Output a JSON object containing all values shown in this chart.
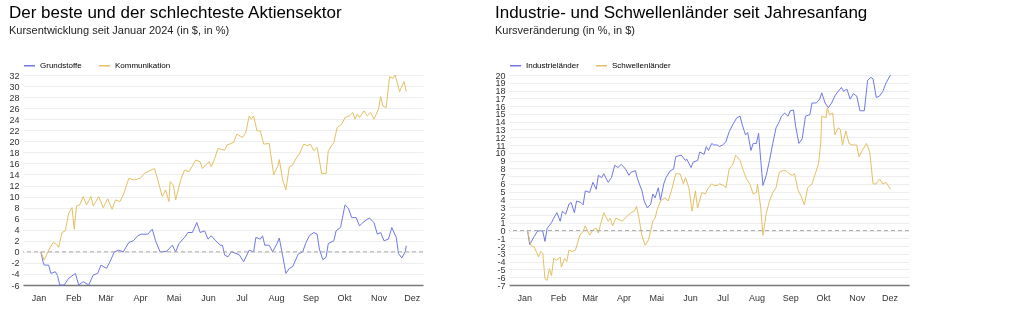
{
  "chart_data": [
    {
      "type": "line",
      "title": "Der beste und der schlechteste Aktiensektor",
      "subtitle": "Kursentwicklung seit Januar 2024 (in $, in %)",
      "legend": "top left",
      "grid": "y",
      "line_style": "solid",
      "xlim": [
        "2023-12-18",
        "2024-12-11"
      ],
      "xticks": [
        {
          "value": "2024-01-01",
          "label": "Jan"
        },
        {
          "value": "2024-02-01",
          "label": "Feb"
        },
        {
          "value": "2024-03-01",
          "label": "Mär"
        },
        {
          "value": "2024-04-01",
          "label": "Apr"
        },
        {
          "value": "2024-05-01",
          "label": "Mai"
        },
        {
          "value": "2024-06-01",
          "label": "Jun"
        },
        {
          "value": "2024-07-01",
          "label": "Jul"
        },
        {
          "value": "2024-08-01",
          "label": "Aug"
        },
        {
          "value": "2024-09-01",
          "label": "Sep"
        },
        {
          "value": "2024-10-01",
          "label": "Okt"
        },
        {
          "value": "2024-11-01",
          "label": "Nov"
        },
        {
          "value": "2024-12-01",
          "label": "Dez"
        }
      ],
      "ylim": [
        -6,
        32
      ],
      "yticks": [
        -6,
        -4,
        -2,
        0,
        2,
        4,
        6,
        8,
        10,
        12,
        14,
        16,
        18,
        20,
        22,
        24,
        26,
        28,
        30,
        32
      ],
      "ref_lines": [
        {
          "axis": "y",
          "value": 0,
          "color": "#aaaaaa",
          "line_style": "dashed"
        }
      ],
      "series": [
        {
          "name": "Grundstoffe",
          "color": "#7079e6",
          "x": [
            "2024-01-03",
            "2024-01-05",
            "2024-01-06",
            "2024-01-10",
            "2024-01-12",
            "2024-01-16",
            "2024-01-18",
            "2024-01-20",
            "2024-01-24",
            "2024-01-28",
            "2024-02-03",
            "2024-02-06",
            "2024-02-10",
            "2024-02-15",
            "2024-02-19",
            "2024-02-23",
            "2024-02-26",
            "2024-03-02",
            "2024-03-05",
            "2024-03-09",
            "2024-03-13",
            "2024-03-17",
            "2024-03-22",
            "2024-03-26",
            "2024-03-30",
            "2024-04-02",
            "2024-04-08",
            "2024-04-12",
            "2024-04-15",
            "2024-04-19",
            "2024-04-25",
            "2024-04-30",
            "2024-05-03",
            "2024-05-06",
            "2024-05-11",
            "2024-05-14",
            "2024-05-18",
            "2024-05-22",
            "2024-05-25",
            "2024-05-29",
            "2024-06-01",
            "2024-06-04",
            "2024-06-08",
            "2024-06-12",
            "2024-06-14",
            "2024-06-16",
            "2024-06-19",
            "2024-06-22",
            "2024-06-29",
            "2024-07-03",
            "2024-07-08",
            "2024-07-12",
            "2024-07-14",
            "2024-07-18",
            "2024-07-20",
            "2024-07-22",
            "2024-07-26",
            "2024-07-29",
            "2024-08-02",
            "2024-08-04",
            "2024-08-07",
            "2024-08-10",
            "2024-08-13",
            "2024-08-16",
            "2024-08-21",
            "2024-08-25",
            "2024-08-28",
            "2024-08-31",
            "2024-09-04",
            "2024-09-07",
            "2024-09-09",
            "2024-09-12",
            "2024-09-15",
            "2024-09-17",
            "2024-09-22",
            "2024-09-24",
            "2024-09-28",
            "2024-10-02",
            "2024-10-05",
            "2024-10-08",
            "2024-10-12",
            "2024-10-15",
            "2024-10-18",
            "2024-10-22",
            "2024-10-24",
            "2024-10-28",
            "2024-10-31",
            "2024-11-03",
            "2024-11-06",
            "2024-11-10",
            "2024-11-13",
            "2024-11-17",
            "2024-11-19",
            "2024-11-22",
            "2024-11-25",
            "2024-11-26"
          ],
          "values": [
            0,
            -1.8,
            -2.4,
            -2.4,
            -3.9,
            -3.6,
            -4.3,
            -6,
            -6,
            -4.8,
            -3.9,
            -6,
            -5.4,
            -6,
            -4.2,
            -3.9,
            -2.4,
            -3,
            -1.8,
            0,
            0.3,
            0,
            1.7,
            2,
            2.9,
            3.2,
            3.2,
            4.1,
            2,
            0,
            0.1,
            1.2,
            0,
            1.5,
            2.6,
            3.5,
            3.5,
            5.3,
            3.5,
            3.8,
            2.3,
            2.9,
            2,
            1.2,
            1.2,
            -0.6,
            -0.9,
            0,
            -0.5,
            -1.8,
            0.3,
            0,
            2.6,
            2.3,
            2.9,
            1.2,
            1.2,
            0,
            1.5,
            2.5,
            -0.7,
            -3.9,
            -3,
            -2.7,
            -0.4,
            0,
            1.7,
            2.9,
            3.5,
            3.2,
            0.5,
            -1.4,
            -1,
            1.5,
            2,
            3.8,
            4.4,
            8.5,
            7.9,
            6.2,
            6.2,
            4.7,
            5.3,
            5.9,
            6.1,
            5.3,
            3.2,
            3.5,
            2,
            2.3,
            4.4,
            2.6,
            -0.3,
            -1.1,
            0,
            1.1
          ]
        },
        {
          "name": "Kommunikation",
          "color": "#e3c063",
          "x": [
            "2024-01-03",
            "2024-01-06",
            "2024-01-10",
            "2024-01-14",
            "2024-01-17",
            "2024-01-19",
            "2024-01-22",
            "2024-01-25",
            "2024-01-28",
            "2024-01-31",
            "2024-02-02",
            "2024-02-04",
            "2024-02-07",
            "2024-02-10",
            "2024-02-13",
            "2024-02-17",
            "2024-02-19",
            "2024-02-24",
            "2024-02-28",
            "2024-03-03",
            "2024-03-07",
            "2024-03-10",
            "2024-03-14",
            "2024-03-17",
            "2024-03-22",
            "2024-03-27",
            "2024-04-01",
            "2024-04-05",
            "2024-04-08",
            "2024-04-14",
            "2024-04-17",
            "2024-04-21",
            "2024-04-24",
            "2024-04-27",
            "2024-04-28",
            "2024-05-01",
            "2024-05-03",
            "2024-05-08",
            "2024-05-11",
            "2024-05-15",
            "2024-05-21",
            "2024-05-25",
            "2024-05-27",
            "2024-06-02",
            "2024-06-04",
            "2024-06-07",
            "2024-06-10",
            "2024-06-16",
            "2024-06-18",
            "2024-06-24",
            "2024-06-27",
            "2024-07-02",
            "2024-07-05",
            "2024-07-08",
            "2024-07-10",
            "2024-07-12",
            "2024-07-15",
            "2024-07-18",
            "2024-07-21",
            "2024-07-26",
            "2024-07-30",
            "2024-08-03",
            "2024-08-04",
            "2024-08-07",
            "2024-08-10",
            "2024-08-13",
            "2024-08-16",
            "2024-08-19",
            "2024-08-22",
            "2024-08-26",
            "2024-08-29",
            "2024-09-01",
            "2024-09-04",
            "2024-09-07",
            "2024-09-09",
            "2024-09-11",
            "2024-09-15",
            "2024-09-17",
            "2024-09-22",
            "2024-09-25",
            "2024-09-29",
            "2024-10-02",
            "2024-10-06",
            "2024-10-09",
            "2024-10-11",
            "2024-10-13",
            "2024-10-15",
            "2024-10-19",
            "2024-10-22",
            "2024-10-25",
            "2024-10-28",
            "2024-11-01",
            "2024-11-03",
            "2024-11-05",
            "2024-11-08",
            "2024-11-11",
            "2024-11-14",
            "2024-11-16",
            "2024-11-20",
            "2024-11-24",
            "2024-11-26"
          ],
          "values": [
            0,
            -1.5,
            0.3,
            1.7,
            1.4,
            0.8,
            3.5,
            3.8,
            7,
            8,
            4.1,
            8.3,
            8.5,
            10,
            8.5,
            10,
            8.3,
            10,
            8,
            9.6,
            7.7,
            9.4,
            9.1,
            10.3,
            13.3,
            13,
            13.3,
            14.2,
            14.5,
            15.1,
            13,
            10,
            11.2,
            9.1,
            12.7,
            12.1,
            9.4,
            13.3,
            14.8,
            14.5,
            16.6,
            16.3,
            15.1,
            16.3,
            15.4,
            16.9,
            18.7,
            18.4,
            19.3,
            19.8,
            21.3,
            20.7,
            21.6,
            24.6,
            24,
            24.6,
            21.9,
            21.9,
            19.5,
            19.6,
            13.9,
            15.7,
            16.7,
            13,
            11.2,
            15.4,
            15.7,
            16.9,
            17.7,
            19.5,
            19.2,
            19.5,
            18.3,
            18.9,
            16.6,
            14.2,
            14.2,
            18.3,
            19.8,
            22.5,
            23.1,
            24.3,
            24.6,
            25.2,
            24,
            24.9,
            24.3,
            25.5,
            24.6,
            25.2,
            24,
            25.8,
            28.1,
            26.4,
            26.1,
            31.7,
            31.4,
            32,
            29,
            30.8,
            29
          ]
        }
      ]
    },
    {
      "type": "line",
      "title": "Industrie- und Schwellenländer seit Jahresanfang",
      "subtitle": "Kursveränderung (in %, in $)",
      "legend": "top left",
      "grid": "y",
      "line_style": "solid",
      "xlim": [
        "2023-12-18",
        "2024-12-19"
      ],
      "xticks": [
        {
          "value": "2024-01-01",
          "label": "Jan"
        },
        {
          "value": "2024-02-01",
          "label": "Feb"
        },
        {
          "value": "2024-03-01",
          "label": "Mär"
        },
        {
          "value": "2024-04-01",
          "label": "Apr"
        },
        {
          "value": "2024-05-01",
          "label": "Mai"
        },
        {
          "value": "2024-06-01",
          "label": "Jun"
        },
        {
          "value": "2024-07-01",
          "label": "Jul"
        },
        {
          "value": "2024-08-01",
          "label": "Aug"
        },
        {
          "value": "2024-09-01",
          "label": "Sep"
        },
        {
          "value": "2024-10-01",
          "label": "Okt"
        },
        {
          "value": "2024-11-01",
          "label": "Nov"
        },
        {
          "value": "2024-12-01",
          "label": "Dez"
        }
      ],
      "ylim": [
        -7,
        20
      ],
      "yticks": [
        -7,
        -6,
        -5,
        -4,
        -3,
        -2,
        -1,
        0,
        1,
        2,
        3,
        4,
        5,
        6,
        7,
        8,
        9,
        10,
        11,
        12,
        13,
        14,
        15,
        16,
        17,
        18,
        19,
        20
      ],
      "ref_lines": [
        {
          "axis": "y",
          "value": 0,
          "color": "#aaaaaa",
          "line_style": "dashed"
        }
      ],
      "series": [
        {
          "name": "Industrieländer",
          "color": "#7079e6",
          "x": [
            "2024-01-04",
            "2024-01-06",
            "2024-01-10",
            "2024-01-13",
            "2024-01-16",
            "2024-01-18",
            "2024-01-20",
            "2024-01-22",
            "2024-01-26",
            "2024-01-28",
            "2024-01-31",
            "2024-02-03",
            "2024-02-05",
            "2024-02-08",
            "2024-02-11",
            "2024-02-13",
            "2024-02-16",
            "2024-02-18",
            "2024-02-22",
            "2024-02-24",
            "2024-02-26",
            "2024-03-01",
            "2024-03-04",
            "2024-03-07",
            "2024-03-09",
            "2024-03-12",
            "2024-03-14",
            "2024-03-18",
            "2024-03-21",
            "2024-03-24",
            "2024-03-27",
            "2024-03-30",
            "2024-04-03",
            "2024-04-06",
            "2024-04-08",
            "2024-04-12",
            "2024-04-14",
            "2024-04-18",
            "2024-04-20",
            "2024-04-23",
            "2024-04-26",
            "2024-04-28",
            "2024-04-30",
            "2024-05-03",
            "2024-05-05",
            "2024-05-08",
            "2024-05-10",
            "2024-05-14",
            "2024-05-17",
            "2024-05-19",
            "2024-05-24",
            "2024-05-28",
            "2024-05-29",
            "2024-06-02",
            "2024-06-04",
            "2024-06-08",
            "2024-06-10",
            "2024-06-14",
            "2024-06-16",
            "2024-06-18",
            "2024-06-21",
            "2024-06-23",
            "2024-06-26",
            "2024-06-28",
            "2024-07-01",
            "2024-07-04",
            "2024-07-07",
            "2024-07-11",
            "2024-07-14",
            "2024-07-17",
            "2024-07-19",
            "2024-07-22",
            "2024-07-24",
            "2024-07-27",
            "2024-07-29",
            "2024-08-01",
            "2024-08-03",
            "2024-08-05",
            "2024-08-07",
            "2024-08-10",
            "2024-08-13",
            "2024-08-16",
            "2024-08-19",
            "2024-08-22",
            "2024-08-24",
            "2024-08-27",
            "2024-08-30",
            "2024-09-01",
            "2024-09-04",
            "2024-09-06",
            "2024-09-09",
            "2024-09-12",
            "2024-09-15",
            "2024-09-19",
            "2024-09-21",
            "2024-09-25",
            "2024-09-28",
            "2024-09-30",
            "2024-10-03",
            "2024-10-06",
            "2024-10-09",
            "2024-10-12",
            "2024-10-15",
            "2024-10-18",
            "2024-10-20",
            "2024-10-23",
            "2024-10-26",
            "2024-10-29",
            "2024-11-01",
            "2024-11-04",
            "2024-11-08",
            "2024-11-11",
            "2024-11-14",
            "2024-11-16",
            "2024-11-19",
            "2024-11-22",
            "2024-11-25",
            "2024-11-28",
            "2024-12-02"
          ],
          "values": [
            0,
            -1.8,
            -0.8,
            -0.1,
            0,
            -0.1,
            -1.4,
            0.3,
            1,
            1.6,
            2.3,
            1.2,
            2.5,
            2.1,
            3.4,
            3.6,
            2.3,
            3.8,
            3.6,
            3.3,
            5.1,
            4.9,
            6.2,
            5.3,
            7.1,
            6.8,
            7.3,
            6.2,
            6.8,
            8.4,
            8.1,
            8.5,
            7.9,
            7.1,
            7.5,
            7.7,
            6.6,
            5.1,
            3.8,
            2.9,
            3.4,
            4.7,
            4.2,
            5.5,
            3.9,
            6,
            6.8,
            7.7,
            7.9,
            9.5,
            9.7,
            9,
            9.2,
            8.1,
            8.8,
            9,
            10.1,
            9.8,
            10.8,
            10.3,
            11.2,
            11,
            11,
            10.8,
            11,
            11.4,
            12.7,
            13.8,
            14.5,
            14.7,
            13.6,
            12.3,
            12.6,
            10.3,
            11.2,
            11.2,
            12.5,
            9,
            5.8,
            7.1,
            9,
            11.2,
            13.2,
            14,
            14.7,
            15.1,
            14.7,
            15.4,
            15.5,
            13.4,
            11.2,
            11.8,
            14.7,
            14.9,
            16.4,
            16.4,
            16.9,
            17.7,
            16.4,
            15.8,
            16.4,
            17.3,
            17.9,
            18.4,
            17.9,
            18.2,
            16.9,
            17.6,
            17.3,
            15.4,
            15.4,
            19.3,
            19.7,
            19.5,
            17.1,
            17.3,
            17.9,
            19,
            20
          ]
        },
        {
          "name": "Schwellenländer",
          "color": "#e3c063",
          "x": [
            "2024-01-04",
            "2024-01-07",
            "2024-01-10",
            "2024-01-12",
            "2024-01-14",
            "2024-01-16",
            "2024-01-18",
            "2024-01-20",
            "2024-01-22",
            "2024-01-24",
            "2024-01-26",
            "2024-01-28",
            "2024-01-31",
            "2024-02-03",
            "2024-02-04",
            "2024-02-07",
            "2024-02-09",
            "2024-02-11",
            "2024-02-14",
            "2024-02-17",
            "2024-02-21",
            "2024-02-24",
            "2024-02-26",
            "2024-03-01",
            "2024-03-04",
            "2024-03-07",
            "2024-03-09",
            "2024-03-11",
            "2024-03-14",
            "2024-03-18",
            "2024-03-20",
            "2024-03-22",
            "2024-03-25",
            "2024-03-28",
            "2024-03-31",
            "2024-04-04",
            "2024-04-08",
            "2024-04-11",
            "2024-04-13",
            "2024-04-15",
            "2024-04-18",
            "2024-04-21",
            "2024-04-24",
            "2024-04-28",
            "2024-04-30",
            "2024-05-02",
            "2024-05-05",
            "2024-05-09",
            "2024-05-12",
            "2024-05-15",
            "2024-05-19",
            "2024-05-23",
            "2024-05-26",
            "2024-05-28",
            "2024-05-31",
            "2024-06-03",
            "2024-06-06",
            "2024-06-08",
            "2024-06-12",
            "2024-06-15",
            "2024-06-18",
            "2024-06-21",
            "2024-06-23",
            "2024-06-26",
            "2024-06-28",
            "2024-07-02",
            "2024-07-04",
            "2024-07-07",
            "2024-07-10",
            "2024-07-13",
            "2024-07-17",
            "2024-07-20",
            "2024-07-23",
            "2024-07-26",
            "2024-07-29",
            "2024-08-01",
            "2024-08-02",
            "2024-08-05",
            "2024-08-07",
            "2024-08-10",
            "2024-08-13",
            "2024-08-16",
            "2024-08-19",
            "2024-08-22",
            "2024-08-25",
            "2024-08-28",
            "2024-08-31",
            "2024-09-03",
            "2024-09-05",
            "2024-09-08",
            "2024-09-11",
            "2024-09-14",
            "2024-09-17",
            "2024-09-21",
            "2024-09-24",
            "2024-09-27",
            "2024-09-29",
            "2024-09-30",
            "2024-10-04",
            "2024-10-05",
            "2024-10-07",
            "2024-10-10",
            "2024-10-12",
            "2024-10-15",
            "2024-10-17",
            "2024-10-19",
            "2024-10-22",
            "2024-10-25",
            "2024-10-28",
            "2024-11-01",
            "2024-11-03",
            "2024-11-07",
            "2024-11-10",
            "2024-11-13",
            "2024-11-16",
            "2024-11-19",
            "2024-11-22",
            "2024-11-25",
            "2024-11-28",
            "2024-12-02"
          ],
          "values": [
            0,
            -1.9,
            -2.1,
            -2.7,
            -3.4,
            -2.7,
            -2.9,
            -6.2,
            -6.4,
            -4.9,
            -5.8,
            -3.6,
            -3.8,
            -3.4,
            -4.7,
            -3.6,
            -4,
            -2.5,
            -2.7,
            -2.5,
            -0.6,
            -0.1,
            0.6,
            -0.6,
            0.1,
            0.3,
            -0.3,
            0.8,
            2.3,
            1.2,
            1.6,
            0.6,
            1.6,
            1.4,
            1.2,
            1.8,
            2.3,
            2.5,
            3.1,
            1.8,
            -0.7,
            -1.9,
            -1.2,
            1.2,
            1.6,
            2.7,
            3.8,
            4.2,
            3.8,
            5.1,
            7.3,
            7.3,
            6,
            6.8,
            5.5,
            2.5,
            5.1,
            2.9,
            4.9,
            4.7,
            5.5,
            6,
            5.8,
            5.8,
            6,
            5.8,
            5.5,
            7.9,
            8.4,
            9.7,
            9,
            7.7,
            6.6,
            6,
            4.7,
            4.9,
            6,
            2.9,
            -0.6,
            2.2,
            3.8,
            4.9,
            5.5,
            7.5,
            7.7,
            7.7,
            7.3,
            7.1,
            7.3,
            5.3,
            4.4,
            3.3,
            5.5,
            6,
            7.3,
            8.6,
            11.2,
            14.7,
            14.5,
            15.8,
            14.9,
            15.1,
            12.3,
            13.2,
            13,
            11,
            12.8,
            11.2,
            11,
            11,
            9.5,
            10.5,
            11.2,
            10.1,
            6,
            6,
            6.6,
            6,
            6.2,
            5.3
          ]
        }
      ]
    }
  ]
}
